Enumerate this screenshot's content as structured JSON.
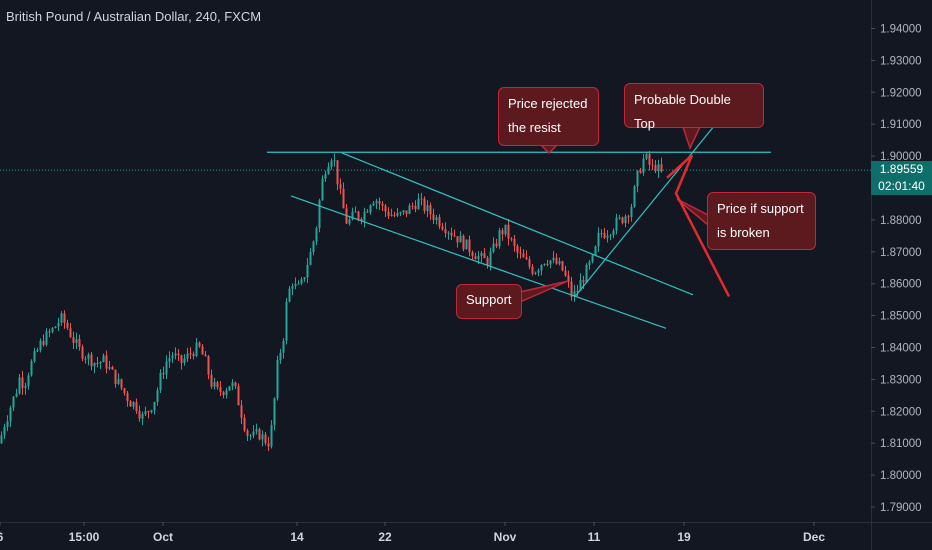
{
  "title": "British Pound / Australian Dollar, 240, FXCM",
  "current_price_label": "1.89559",
  "countdown_label": "02:01:40",
  "colors": {
    "bg": "#131722",
    "up": "#26a69a",
    "down": "#ef5350",
    "channel": "#2fc3c3",
    "annotation_fill": "#5c1a1f",
    "annotation_border": "#c0283a",
    "projection": "#e32b2b"
  },
  "annotations": [
    {
      "name": "price-rejected",
      "lines": [
        "Price rejected",
        "the resist"
      ]
    },
    {
      "name": "double-top",
      "lines": [
        "Probable Double Top"
      ]
    },
    {
      "name": "support-broken",
      "lines": [
        "Price if support",
        "is broken"
      ]
    },
    {
      "name": "support",
      "lines": [
        "Support"
      ]
    }
  ],
  "chart_data": {
    "type": "candlestick",
    "symbol": "British Pound / Australian Dollar",
    "interval": "240",
    "source": "FXCM",
    "y_ticks": [
      "1.94000",
      "1.93000",
      "1.92000",
      "1.91000",
      "1.90000",
      "1.89000",
      "1.88000",
      "1.87000",
      "1.86000",
      "1.85000",
      "1.84000",
      "1.83000",
      "1.82000",
      "1.81000",
      "1.80000",
      "1.79000"
    ],
    "x_ticks": [
      "6",
      "15:00",
      "Oct",
      "14",
      "22",
      "Nov",
      "11",
      "19",
      "Dec"
    ],
    "ylim": [
      1.785,
      1.945
    ],
    "current_price": 1.89559,
    "resistance_level": 1.9012,
    "path": [
      [
        0,
        1.81
      ],
      [
        3,
        1.815
      ],
      [
        7,
        1.818
      ],
      [
        11,
        1.822
      ],
      [
        16,
        1.826
      ],
      [
        20,
        1.831
      ],
      [
        24,
        1.828
      ],
      [
        30,
        1.834
      ],
      [
        36,
        1.838
      ],
      [
        42,
        1.842
      ],
      [
        48,
        1.844
      ],
      [
        54,
        1.846
      ],
      [
        58,
        1.848
      ],
      [
        62,
        1.849
      ],
      [
        68,
        1.846
      ],
      [
        74,
        1.842
      ],
      [
        80,
        1.839
      ],
      [
        88,
        1.837
      ],
      [
        96,
        1.835
      ],
      [
        104,
        1.836
      ],
      [
        112,
        1.832
      ],
      [
        118,
        1.829
      ],
      [
        124,
        1.826
      ],
      [
        130,
        1.823
      ],
      [
        136,
        1.822
      ],
      [
        142,
        1.818
      ],
      [
        148,
        1.82
      ],
      [
        155,
        1.824
      ],
      [
        161,
        1.831
      ],
      [
        167,
        1.836
      ],
      [
        173,
        1.838
      ],
      [
        180,
        1.835
      ],
      [
        187,
        1.837
      ],
      [
        193,
        1.839
      ],
      [
        199,
        1.84
      ],
      [
        205,
        1.836
      ],
      [
        211,
        1.829
      ],
      [
        218,
        1.826
      ],
      [
        225,
        1.827
      ],
      [
        231,
        1.829
      ],
      [
        236,
        1.826
      ],
      [
        241,
        1.82
      ],
      [
        247,
        1.813
      ],
      [
        253,
        1.812
      ],
      [
        259,
        1.813
      ],
      [
        265,
        1.811
      ],
      [
        270,
        1.81
      ],
      [
        274,
        1.822
      ],
      [
        278,
        1.836
      ],
      [
        283,
        1.842
      ],
      [
        287,
        1.855
      ],
      [
        292,
        1.861
      ],
      [
        297,
        1.858
      ],
      [
        302,
        1.86
      ],
      [
        307,
        1.866
      ],
      [
        312,
        1.871
      ],
      [
        317,
        1.879
      ],
      [
        321,
        1.89
      ],
      [
        325,
        1.896
      ],
      [
        329,
        1.899
      ],
      [
        333,
        1.901
      ],
      [
        336,
        1.895
      ],
      [
        339,
        1.89
      ],
      [
        343,
        1.884
      ],
      [
        347,
        1.879
      ],
      [
        351,
        1.88
      ],
      [
        355,
        1.882
      ],
      [
        360,
        1.881
      ],
      [
        366,
        1.883
      ],
      [
        372,
        1.887
      ],
      [
        378,
        1.886
      ],
      [
        384,
        1.883
      ],
      [
        390,
        1.882
      ],
      [
        397,
        1.881
      ],
      [
        404,
        1.882
      ],
      [
        411,
        1.884
      ],
      [
        418,
        1.886
      ],
      [
        424,
        1.884
      ],
      [
        431,
        1.882
      ],
      [
        438,
        1.88
      ],
      [
        445,
        1.878
      ],
      [
        452,
        1.876
      ],
      [
        459,
        1.874
      ],
      [
        466,
        1.872
      ],
      [
        473,
        1.87
      ],
      [
        480,
        1.868
      ],
      [
        487,
        1.867
      ],
      [
        494,
        1.871
      ],
      [
        500,
        1.876
      ],
      [
        505,
        1.877
      ],
      [
        510,
        1.874
      ],
      [
        516,
        1.87
      ],
      [
        522,
        1.868
      ],
      [
        528,
        1.866
      ],
      [
        534,
        1.864
      ],
      [
        540,
        1.866
      ],
      [
        546,
        1.868
      ],
      [
        552,
        1.867
      ],
      [
        558,
        1.866
      ],
      [
        563,
        1.864
      ],
      [
        568,
        1.86
      ],
      [
        572,
        1.856
      ],
      [
        576,
        1.857
      ],
      [
        580,
        1.86
      ],
      [
        585,
        1.863
      ],
      [
        590,
        1.866
      ],
      [
        594,
        1.868
      ],
      [
        597,
        1.873
      ],
      [
        600,
        1.876
      ],
      [
        605,
        1.876
      ],
      [
        610,
        1.877
      ],
      [
        616,
        1.879
      ],
      [
        621,
        1.88
      ],
      [
        627,
        1.882
      ],
      [
        632,
        1.885
      ],
      [
        637,
        1.893
      ],
      [
        641,
        1.897
      ],
      [
        645,
        1.9
      ],
      [
        648,
        1.898
      ],
      [
        652,
        1.896
      ],
      [
        656,
        1.897
      ],
      [
        660,
        1.895
      ],
      [
        663,
        1.894
      ]
    ],
    "trendlines": [
      {
        "name": "resistance",
        "p1": [
          267,
          1.9012
        ],
        "p2": [
          771,
          1.9012
        ]
      },
      {
        "name": "channel-upper",
        "p1": [
          342,
          1.901
        ],
        "p2": [
          693,
          1.8565
        ]
      },
      {
        "name": "channel-lower",
        "p1": [
          291,
          1.8875
        ],
        "p2": [
          666,
          1.846
        ]
      },
      {
        "name": "ascending-support",
        "p1": [
          575,
          1.856
        ],
        "p2": [
          713,
          1.909
        ]
      }
    ],
    "projection": [
      [
        667,
        1.8932
      ],
      [
        692,
        1.9003
      ],
      [
        676,
        1.8883
      ],
      [
        729,
        1.856
      ]
    ]
  }
}
